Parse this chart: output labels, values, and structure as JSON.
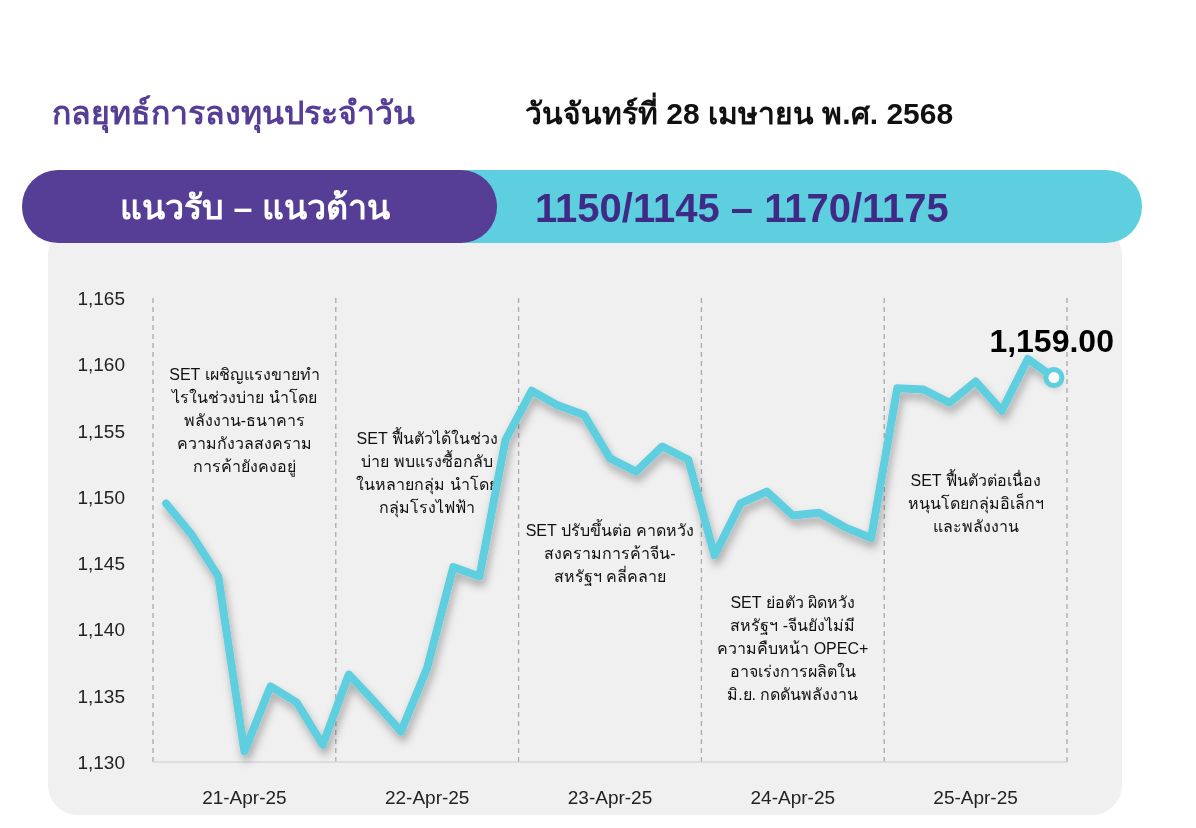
{
  "chart_data": {
    "type": "line",
    "title": "กลยุทธ์การลงทุนประจำวัน",
    "subtitle": "วันจันทร์ที่ 28 เมษายน พ.ศ. 2568",
    "categories": [
      null,
      null,
      null,
      "21-Apr-25",
      null,
      null,
      null,
      null,
      null,
      null,
      "22-Apr-25",
      null,
      null,
      null,
      null,
      null,
      null,
      "23-Apr-25",
      null,
      null,
      null,
      null,
      null,
      null,
      "24-Apr-25",
      null,
      null,
      null,
      null,
      null,
      null,
      "25-Apr-25",
      null,
      null,
      null
    ],
    "series": [
      {
        "color": "#5ecfdf",
        "values": [
          1149.5,
          1147.1,
          1144.0,
          1130.8,
          1135.7,
          1134.5,
          1131.3,
          1136.6,
          1134.5,
          1132.3,
          1137.1,
          1144.7,
          1144.0,
          1154.3,
          1158.0,
          1156.9,
          1156.2,
          1152.9,
          1151.9,
          1153.8,
          1152.8,
          1145.6,
          1149.5,
          1150.4,
          1148.6,
          1148.8,
          1147.7,
          1146.9,
          1158.2,
          1158.1,
          1157.1,
          1158.7,
          1156.5,
          1160.4,
          1159.0
        ]
      }
    ],
    "ylim": [
      1130,
      1165
    ],
    "yticks": [
      {
        "value": 1130,
        "label": "1,130"
      },
      {
        "value": 1135,
        "label": "1,135"
      },
      {
        "value": 1140,
        "label": "1,140"
      },
      {
        "value": 1145,
        "label": "1,145"
      },
      {
        "value": 1150,
        "label": "1,150"
      },
      {
        "value": 1155,
        "label": "1,155"
      },
      {
        "value": 1160,
        "label": "1,160"
      },
      {
        "value": 1165,
        "label": "1,165"
      }
    ],
    "grid": false,
    "annotations": [
      "แนวรับ – แนวต้าน",
      "1150/1145 – 1170/1175",
      "SET เผชิญแรงขายทำ\nไรในช่วงบ่าย นำโดย\nพลังงาน-ธนาคาร\nความกังวลสงคราม\nการค้ายังคงอยู่",
      "SET ฟื้นตัวได้ในช่วง\nบ่าย พบแรงซื้อกลับ\nในหลายกลุ่ม นำโดย\nกลุ่มโรงไฟฟ้า",
      "SET ปรับขึ้นต่อ คาดหวัง\nสงครามการค้าจีน-\nสหรัฐฯ คลี่คลาย",
      "SET ย่อตัว ผิดหวัง\nสหรัฐฯ -จีนยังไม่มี\nความคืบหน้า OPEC+\nอาจเร่งการผลิตใน\nมิ.ย. กดดันพลังงาน",
      "SET ฟื้นตัวต่อเนื่อง\nหนุนโดยกลุ่มอิเล็กฯ\nและพลังงาน",
      {
        "text": "1,159.00",
        "y": 1159.0
      }
    ]
  }
}
